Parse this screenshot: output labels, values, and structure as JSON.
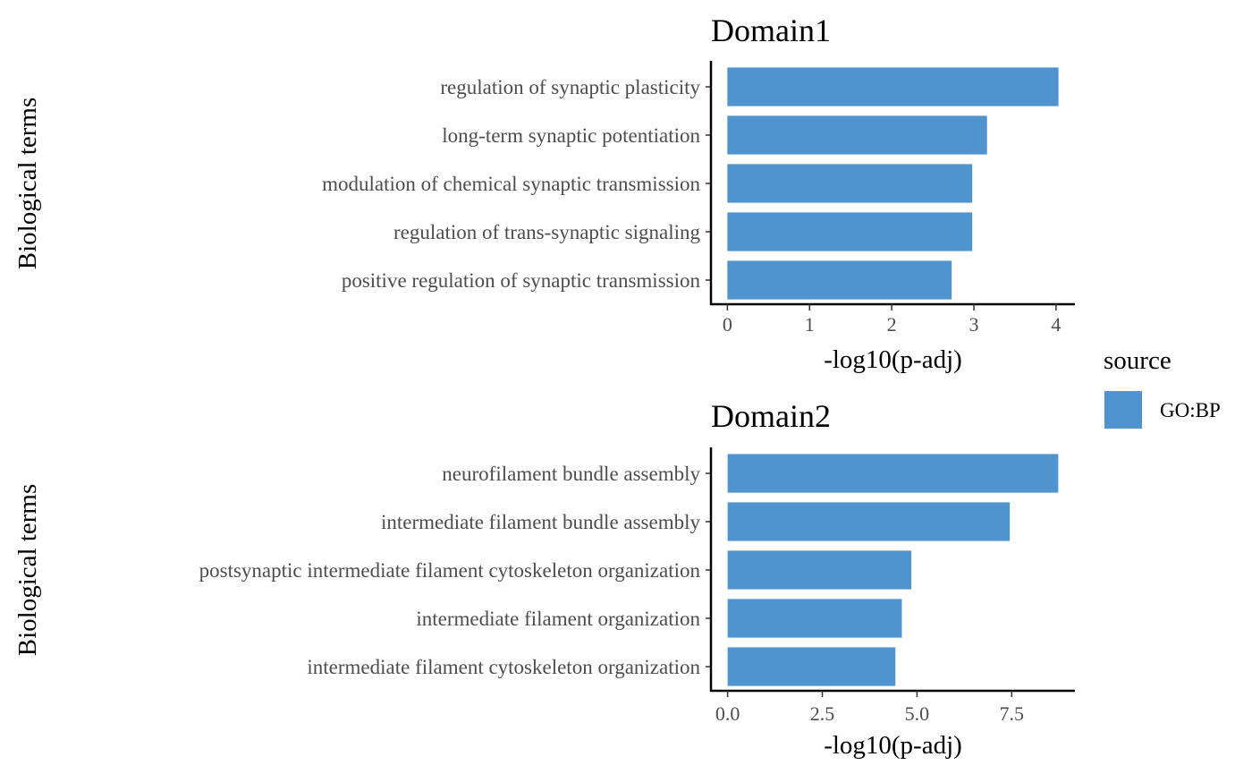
{
  "chart_data": [
    {
      "type": "bar",
      "orientation": "horizontal",
      "title": "Domain1",
      "xlabel": "-log10(p-adj)",
      "ylabel": "Biological terms",
      "categories": [
        "regulation of synaptic plasticity",
        "long-term synaptic potentiation",
        "modulation of chemical synaptic transmission",
        "regulation of trans-synaptic signaling",
        "positive regulation of synaptic transmission"
      ],
      "values": [
        4.03,
        3.16,
        2.98,
        2.98,
        2.73
      ],
      "xticks": [
        0,
        1,
        2,
        3,
        4
      ],
      "xtick_labels": [
        "0",
        "1",
        "2",
        "3",
        "4"
      ],
      "xlim": [
        -0.2,
        4.23
      ],
      "series_color": "#4f94cf",
      "grid": false
    },
    {
      "type": "bar",
      "orientation": "horizontal",
      "title": "Domain2",
      "xlabel": "-log10(p-adj)",
      "ylabel": "Biological terms",
      "categories": [
        "neurofilament bundle assembly",
        "intermediate filament bundle assembly",
        "postsynaptic intermediate filament cytoskeleton organization",
        "intermediate filament organization",
        "intermediate filament cytoskeleton organization"
      ],
      "values": [
        8.73,
        7.45,
        4.85,
        4.6,
        4.43
      ],
      "xticks": [
        0,
        2.5,
        5,
        7.5
      ],
      "xtick_labels": [
        "0.0",
        "2.5",
        "5.0",
        "7.5"
      ],
      "xlim": [
        -0.44,
        9.17
      ],
      "series_color": "#4f94cf",
      "grid": false
    }
  ],
  "legend": {
    "title": "source",
    "items": [
      {
        "label": "GO:BP",
        "color": "#4f94cf"
      }
    ],
    "placement": "right"
  }
}
